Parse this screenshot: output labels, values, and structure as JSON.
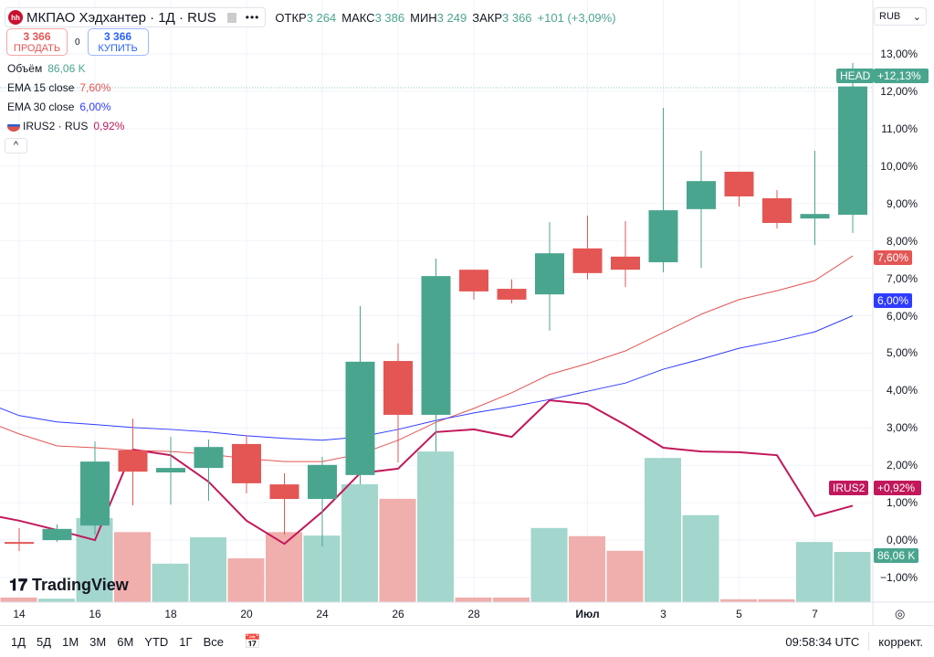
{
  "header": {
    "logo": "hh",
    "title": "МКПАО Хэдхантер · 1Д · RUS",
    "more": "•••",
    "ohlc": [
      {
        "k": "ОТКР",
        "v": "3 264"
      },
      {
        "k": "МАКС",
        "v": "3 386"
      },
      {
        "k": "МИН",
        "v": "3 249"
      },
      {
        "k": "ЗАКР",
        "v": "3 366"
      }
    ],
    "change": "+101 (+3,09%)"
  },
  "trade": {
    "sell_price": "3 366",
    "sell_label": "ПРОДАТЬ",
    "spread": "0",
    "buy_price": "3 366",
    "buy_label": "КУПИТЬ"
  },
  "indicators": {
    "volume": {
      "label": "Объём",
      "value": "86,06 K"
    },
    "ema15": {
      "label": "EMA 15 close",
      "value": "7,60%"
    },
    "ema30": {
      "label": "EMA 30 close",
      "value": "6,00%"
    },
    "compare": {
      "label": "IRUS2 · RUS",
      "value": "0,92%"
    },
    "collapse": "^"
  },
  "price_axis": {
    "currency": "RUB",
    "ticks": [
      "13,00%",
      "12,00%",
      "11,00%",
      "10,00%",
      "9,00%",
      "8,00%",
      "7,00%",
      "6,00%",
      "5,00%",
      "4,00%",
      "3,00%",
      "2,00%",
      "1,00%",
      "0,00%",
      "−1,00%"
    ]
  },
  "labels": {
    "head_name": "HEAD",
    "head_value": "+12,13%",
    "ema15": "7,60%",
    "ema30": "6,00%",
    "irus_name": "IRUS2",
    "irus_value": "+0,92%",
    "volume": "86,06 K"
  },
  "dates": [
    {
      "i": 0,
      "t": "14"
    },
    {
      "i": 2,
      "t": "16"
    },
    {
      "i": 4,
      "t": "18"
    },
    {
      "i": 6,
      "t": "20"
    },
    {
      "i": 8,
      "t": "24"
    },
    {
      "i": 10,
      "t": "26"
    },
    {
      "i": 12,
      "t": "28"
    },
    {
      "i": 15,
      "t": "Июл"
    },
    {
      "i": 17,
      "t": "3"
    },
    {
      "i": 19,
      "t": "5"
    },
    {
      "i": 21,
      "t": "7"
    }
  ],
  "colors": {
    "up": "#4aa58f",
    "down": "#e35654",
    "ema15": "#e35654",
    "ema30": "#2f3cff",
    "irus": "#c2185b",
    "vol_up": "#a3d6cd",
    "vol_down": "#f0aeac"
  },
  "chart_data": {
    "type": "candlestick",
    "units": "% change",
    "ohlc": [
      [
        -0.05,
        0.32,
        -0.29,
        -0.07
      ],
      [
        0.0,
        0.42,
        -0.05,
        0.3
      ],
      [
        0.39,
        2.64,
        0.15,
        2.1
      ],
      [
        2.4,
        3.25,
        0.93,
        1.83
      ],
      [
        1.81,
        2.76,
        0.95,
        1.93
      ],
      [
        1.93,
        2.69,
        1.05,
        2.49
      ],
      [
        2.57,
        2.81,
        1.25,
        1.52
      ],
      [
        1.49,
        1.79,
        0.15,
        1.1
      ],
      [
        1.1,
        2.23,
        -0.17,
        2.01
      ],
      [
        1.74,
        6.26,
        1.49,
        4.77
      ],
      [
        4.79,
        5.26,
        2.08,
        3.35
      ],
      [
        3.35,
        7.53,
        2.37,
        7.06
      ],
      [
        7.23,
        7.23,
        6.43,
        6.65
      ],
      [
        6.72,
        6.97,
        6.33,
        6.43
      ],
      [
        6.57,
        8.5,
        5.6,
        7.67
      ],
      [
        7.8,
        8.68,
        6.97,
        7.14
      ],
      [
        7.58,
        8.53,
        6.77,
        7.23
      ],
      [
        7.43,
        11.56,
        7.16,
        8.82
      ],
      [
        8.85,
        10.41,
        7.28,
        9.6
      ],
      [
        9.85,
        9.85,
        8.92,
        9.19
      ],
      [
        9.14,
        9.36,
        8.33,
        8.48
      ],
      [
        8.6,
        10.41,
        7.89,
        8.72
      ],
      [
        8.7,
        12.76,
        8.21,
        12.13
      ]
    ],
    "volume_k": [
      8,
      6,
      144,
      120,
      66,
      111,
      75,
      120,
      114,
      202,
      177,
      258,
      8,
      8,
      127,
      113,
      88,
      247,
      149,
      5,
      5,
      103,
      86.06
    ],
    "ema15": [
      2.84,
      2.52,
      2.47,
      2.4,
      2.37,
      2.3,
      2.18,
      2.1,
      2.1,
      2.3,
      2.67,
      3.15,
      3.52,
      3.94,
      4.43,
      4.72,
      5.06,
      5.55,
      6.04,
      6.43,
      6.67,
      6.94,
      7.6
    ],
    "ema30": [
      3.33,
      3.16,
      3.09,
      3.01,
      2.96,
      2.89,
      2.79,
      2.72,
      2.67,
      2.76,
      2.96,
      3.2,
      3.4,
      3.57,
      3.76,
      3.98,
      4.2,
      4.57,
      4.84,
      5.13,
      5.33,
      5.57,
      6.0
    ],
    "irus2": [
      0.52,
      0.27,
      0.0,
      2.42,
      2.27,
      1.56,
      0.52,
      -0.1,
      0.76,
      1.79,
      1.91,
      2.89,
      2.96,
      2.76,
      3.74,
      3.64,
      3.08,
      2.47,
      2.37,
      2.35,
      2.27,
      0.64,
      0.92
    ],
    "ylim": [
      -1.65,
      13.0
    ]
  },
  "bottom": {
    "periods": [
      "1Д",
      "5Д",
      "1М",
      "3М",
      "6М",
      "YTD",
      "1Г",
      "Все"
    ],
    "time": "09:58:34 UTC",
    "adjust": "коррект."
  },
  "watermark": "TradingView"
}
